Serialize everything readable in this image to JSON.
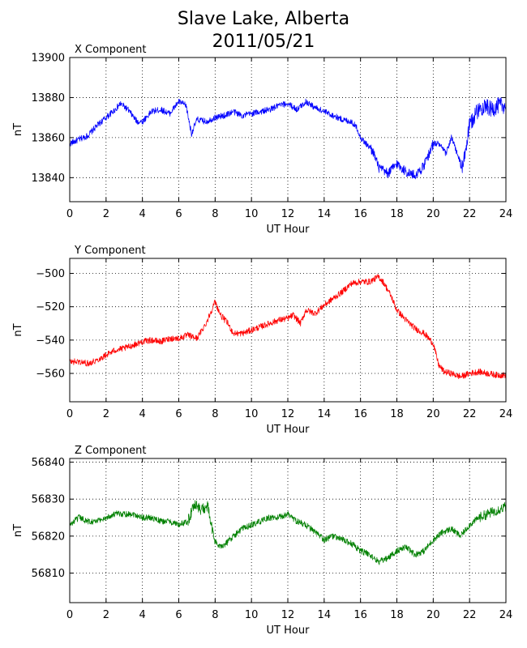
{
  "title": {
    "line1": "Slave Lake, Alberta",
    "line2": "2011/05/21"
  },
  "chart_data": [
    {
      "type": "line",
      "panel_title": "X Component",
      "xlabel": "UT Hour",
      "ylabel": "nT",
      "xlim": [
        0,
        24
      ],
      "ylim": [
        13828,
        13900
      ],
      "xticks": [
        0,
        2,
        4,
        6,
        8,
        10,
        12,
        14,
        16,
        18,
        20,
        22,
        24
      ],
      "yticks": [
        13840,
        13860,
        13880,
        13900
      ],
      "grid": true,
      "color": "#0000ff",
      "series": [
        {
          "x": [
            0,
            0.5,
            1,
            1.5,
            2,
            2.5,
            2.8,
            3.2,
            3.7,
            4,
            4.5,
            5,
            5.5,
            6,
            6.4,
            6.7,
            7,
            7.5,
            8,
            8.5,
            9,
            9.5,
            10,
            10.5,
            11,
            11.5,
            12,
            12.5,
            13,
            13.5,
            14,
            14.5,
            15,
            15.5,
            15.8,
            16,
            16.3,
            16.7,
            17,
            17.5,
            18,
            18.5,
            19,
            19.5,
            20,
            20.3,
            20.7,
            21,
            21.4,
            21.6,
            22,
            22.4,
            22.8,
            23.2,
            23.6,
            24
          ],
          "y": [
            13857,
            13859,
            13861,
            13866,
            13870,
            13874,
            13877,
            13874,
            13868,
            13868,
            13873,
            13874,
            13872,
            13878,
            13876,
            13862,
            13869,
            13868,
            13870,
            13871,
            13873,
            13871,
            13872,
            13873,
            13874,
            13876,
            13877,
            13874,
            13878,
            13875,
            13873,
            13871,
            13869,
            13868,
            13865,
            13860,
            13857,
            13853,
            13845,
            13842,
            13847,
            13843,
            13841,
            13846,
            13857,
            13857,
            13852,
            13860,
            13850,
            13844,
            13866,
            13873,
            13876,
            13874,
            13876,
            13876
          ]
        }
      ]
    },
    {
      "type": "line",
      "panel_title": "Y Component",
      "xlabel": "UT Hour",
      "ylabel": "nT",
      "xlim": [
        0,
        24
      ],
      "ylim": [
        -577,
        -491
      ],
      "xticks": [
        0,
        2,
        4,
        6,
        8,
        10,
        12,
        14,
        16,
        18,
        20,
        22,
        24
      ],
      "yticks": [
        -500,
        -520,
        -540,
        -560
      ],
      "grid": true,
      "color": "#ff0000",
      "series": [
        {
          "x": [
            0,
            0.5,
            1,
            1.5,
            2,
            2.5,
            3,
            3.5,
            4,
            4.5,
            5,
            5.5,
            6,
            6.5,
            7,
            7.5,
            8,
            8.3,
            8.7,
            9,
            9.5,
            10,
            10.5,
            11,
            11.5,
            12,
            12.3,
            12.7,
            13,
            13.5,
            14,
            14.5,
            15,
            15.5,
            16,
            16.5,
            17,
            17.3,
            17.7,
            18,
            18.5,
            19,
            19.5,
            20,
            20.3,
            20.6,
            21,
            21.5,
            22,
            22.5,
            23,
            23.5,
            24
          ],
          "y": [
            -553,
            -553,
            -554,
            -552,
            -549,
            -546,
            -545,
            -543,
            -541,
            -540,
            -541,
            -539,
            -539,
            -537,
            -539,
            -530,
            -517,
            -525,
            -530,
            -536,
            -536,
            -534,
            -532,
            -530,
            -528,
            -527,
            -525,
            -530,
            -522,
            -524,
            -519,
            -515,
            -511,
            -506,
            -505,
            -505,
            -502,
            -506,
            -514,
            -522,
            -528,
            -533,
            -536,
            -542,
            -555,
            -559,
            -560,
            -562,
            -560,
            -559,
            -560,
            -561,
            -561
          ]
        }
      ]
    },
    {
      "type": "line",
      "panel_title": "Z Component",
      "xlabel": "UT Hour",
      "ylabel": "nT",
      "xlim": [
        0,
        24
      ],
      "ylim": [
        56802,
        56841
      ],
      "xticks": [
        0,
        2,
        4,
        6,
        8,
        10,
        12,
        14,
        16,
        18,
        20,
        22,
        24
      ],
      "yticks": [
        56810,
        56820,
        56830,
        56840
      ],
      "grid": true,
      "color": "#008000",
      "series": [
        {
          "x": [
            0,
            0.5,
            1,
            1.5,
            2,
            2.5,
            3,
            3.5,
            4,
            4.5,
            5,
            5.5,
            6,
            6.5,
            6.9,
            7.2,
            7.6,
            7.9,
            8.2,
            8.6,
            9,
            9.5,
            10,
            10.5,
            11,
            11.5,
            12,
            12.5,
            13,
            13.5,
            14,
            14.5,
            15,
            15.5,
            16,
            16.5,
            17,
            17.5,
            18,
            18.5,
            19,
            19.5,
            20,
            20.5,
            21,
            21.5,
            22,
            22.5,
            23,
            23.5,
            24
          ],
          "y": [
            56823,
            56825,
            56824,
            56824,
            56825,
            56826,
            56826,
            56826,
            56825,
            56825,
            56824,
            56824,
            56823,
            56824,
            56829,
            56827,
            56828,
            56820,
            56817,
            56818,
            56820,
            56822,
            56823,
            56824,
            56825,
            56825,
            56826,
            56824,
            56823,
            56821,
            56819,
            56820,
            56819,
            56818,
            56816,
            56815,
            56813,
            56814,
            56816,
            56817,
            56815,
            56816,
            56819,
            56821,
            56822,
            56820,
            56823,
            56825,
            56826,
            56827,
            56828
          ]
        }
      ]
    }
  ]
}
